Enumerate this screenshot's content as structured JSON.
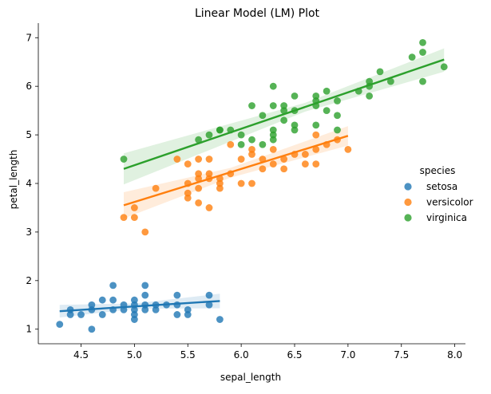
{
  "chart_data": {
    "type": "scatter",
    "title": "Linear Model (LM) Plot",
    "xlabel": "sepal_length",
    "ylabel": "petal_length",
    "xlim": [
      4.1,
      8.1
    ],
    "ylim": [
      0.7,
      7.3
    ],
    "xticks": [
      4.5,
      5.0,
      5.5,
      6.0,
      6.5,
      7.0,
      7.5,
      8.0
    ],
    "xtick_labels": [
      "4.5",
      "5.0",
      "5.5",
      "6.0",
      "6.5",
      "7.0",
      "7.5",
      "8.0"
    ],
    "yticks": [
      1,
      2,
      3,
      4,
      5,
      6,
      7
    ],
    "ytick_labels": [
      "1",
      "2",
      "3",
      "4",
      "5",
      "6",
      "7"
    ],
    "grid": false,
    "legend_title": "species",
    "legend_position": "right",
    "series": [
      {
        "name": "setosa",
        "color": "#1f77b4",
        "fit_line": {
          "x": [
            4.3,
            5.8
          ],
          "y": [
            1.37,
            1.58
          ]
        },
        "ci_band": {
          "x": [
            4.3,
            5.0,
            5.8
          ],
          "upper": [
            1.5,
            1.53,
            1.73
          ],
          "lower": [
            1.24,
            1.42,
            1.43
          ]
        },
        "points": [
          [
            4.3,
            1.1
          ],
          [
            4.4,
            1.3
          ],
          [
            4.4,
            1.4
          ],
          [
            4.5,
            1.3
          ],
          [
            4.6,
            1.0
          ],
          [
            4.6,
            1.4
          ],
          [
            4.6,
            1.5
          ],
          [
            4.7,
            1.3
          ],
          [
            4.7,
            1.6
          ],
          [
            4.8,
            1.4
          ],
          [
            4.8,
            1.6
          ],
          [
            4.8,
            1.9
          ],
          [
            4.9,
            1.4
          ],
          [
            4.9,
            1.5
          ],
          [
            5.0,
            1.2
          ],
          [
            5.0,
            1.3
          ],
          [
            5.0,
            1.4
          ],
          [
            5.0,
            1.5
          ],
          [
            5.0,
            1.6
          ],
          [
            5.1,
            1.4
          ],
          [
            5.1,
            1.5
          ],
          [
            5.1,
            1.7
          ],
          [
            5.1,
            1.9
          ],
          [
            5.2,
            1.4
          ],
          [
            5.2,
            1.5
          ],
          [
            5.3,
            1.5
          ],
          [
            5.4,
            1.3
          ],
          [
            5.4,
            1.5
          ],
          [
            5.4,
            1.7
          ],
          [
            5.5,
            1.3
          ],
          [
            5.5,
            1.4
          ],
          [
            5.7,
            1.5
          ],
          [
            5.7,
            1.7
          ],
          [
            5.8,
            1.2
          ]
        ]
      },
      {
        "name": "versicolor",
        "color": "#ff7f0e",
        "fit_line": {
          "x": [
            4.9,
            7.0
          ],
          "y": [
            3.55,
            4.98
          ]
        },
        "ci_band": {
          "x": [
            4.9,
            5.9,
            7.0
          ],
          "upper": [
            3.82,
            4.32,
            5.18
          ],
          "lower": [
            3.28,
            4.12,
            4.78
          ]
        },
        "points": [
          [
            4.9,
            3.3
          ],
          [
            5.0,
            3.3
          ],
          [
            5.0,
            3.5
          ],
          [
            5.1,
            3.0
          ],
          [
            5.2,
            3.9
          ],
          [
            5.4,
            4.5
          ],
          [
            5.5,
            3.7
          ],
          [
            5.5,
            3.8
          ],
          [
            5.5,
            4.0
          ],
          [
            5.5,
            4.4
          ],
          [
            5.6,
            3.6
          ],
          [
            5.6,
            3.9
          ],
          [
            5.6,
            4.1
          ],
          [
            5.6,
            4.2
          ],
          [
            5.6,
            4.5
          ],
          [
            5.7,
            3.5
          ],
          [
            5.7,
            4.1
          ],
          [
            5.7,
            4.2
          ],
          [
            5.7,
            4.5
          ],
          [
            5.8,
            3.9
          ],
          [
            5.8,
            4.0
          ],
          [
            5.8,
            4.1
          ],
          [
            5.9,
            4.2
          ],
          [
            5.9,
            4.8
          ],
          [
            6.0,
            4.0
          ],
          [
            6.0,
            4.5
          ],
          [
            6.1,
            4.0
          ],
          [
            6.1,
            4.6
          ],
          [
            6.1,
            4.7
          ],
          [
            6.2,
            4.3
          ],
          [
            6.2,
            4.5
          ],
          [
            6.3,
            4.4
          ],
          [
            6.3,
            4.7
          ],
          [
            6.4,
            4.3
          ],
          [
            6.4,
            4.5
          ],
          [
            6.5,
            4.6
          ],
          [
            6.6,
            4.4
          ],
          [
            6.6,
            4.6
          ],
          [
            6.7,
            4.4
          ],
          [
            6.7,
            4.7
          ],
          [
            6.7,
            5.0
          ],
          [
            6.8,
            4.8
          ],
          [
            6.9,
            4.9
          ],
          [
            7.0,
            4.7
          ]
        ]
      },
      {
        "name": "virginica",
        "color": "#2ca02c",
        "fit_line": {
          "x": [
            4.9,
            7.9
          ],
          "y": [
            4.3,
            6.55
          ]
        },
        "ci_band": {
          "x": [
            4.9,
            6.6,
            7.9
          ],
          "upper": [
            4.62,
            5.66,
            6.78
          ],
          "lower": [
            3.98,
            5.48,
            6.3
          ]
        },
        "points": [
          [
            4.9,
            4.5
          ],
          [
            5.6,
            4.9
          ],
          [
            5.7,
            5.0
          ],
          [
            5.8,
            5.1
          ],
          [
            5.8,
            5.1
          ],
          [
            5.9,
            5.1
          ],
          [
            6.0,
            4.8
          ],
          [
            6.0,
            5.0
          ],
          [
            6.1,
            4.9
          ],
          [
            6.1,
            5.6
          ],
          [
            6.2,
            4.8
          ],
          [
            6.2,
            5.4
          ],
          [
            6.3,
            4.9
          ],
          [
            6.3,
            5.0
          ],
          [
            6.3,
            5.1
          ],
          [
            6.3,
            5.6
          ],
          [
            6.3,
            6.0
          ],
          [
            6.4,
            5.3
          ],
          [
            6.4,
            5.5
          ],
          [
            6.4,
            5.6
          ],
          [
            6.5,
            5.1
          ],
          [
            6.5,
            5.2
          ],
          [
            6.5,
            5.5
          ],
          [
            6.5,
            5.8
          ],
          [
            6.7,
            5.2
          ],
          [
            6.7,
            5.6
          ],
          [
            6.7,
            5.7
          ],
          [
            6.7,
            5.8
          ],
          [
            6.8,
            5.5
          ],
          [
            6.8,
            5.9
          ],
          [
            6.9,
            5.1
          ],
          [
            6.9,
            5.4
          ],
          [
            6.9,
            5.7
          ],
          [
            7.1,
            5.9
          ],
          [
            7.2,
            5.8
          ],
          [
            7.2,
            6.0
          ],
          [
            7.2,
            6.1
          ],
          [
            7.3,
            6.3
          ],
          [
            7.4,
            6.1
          ],
          [
            7.6,
            6.6
          ],
          [
            7.7,
            6.1
          ],
          [
            7.7,
            6.7
          ],
          [
            7.7,
            6.9
          ],
          [
            7.9,
            6.4
          ]
        ]
      }
    ]
  }
}
